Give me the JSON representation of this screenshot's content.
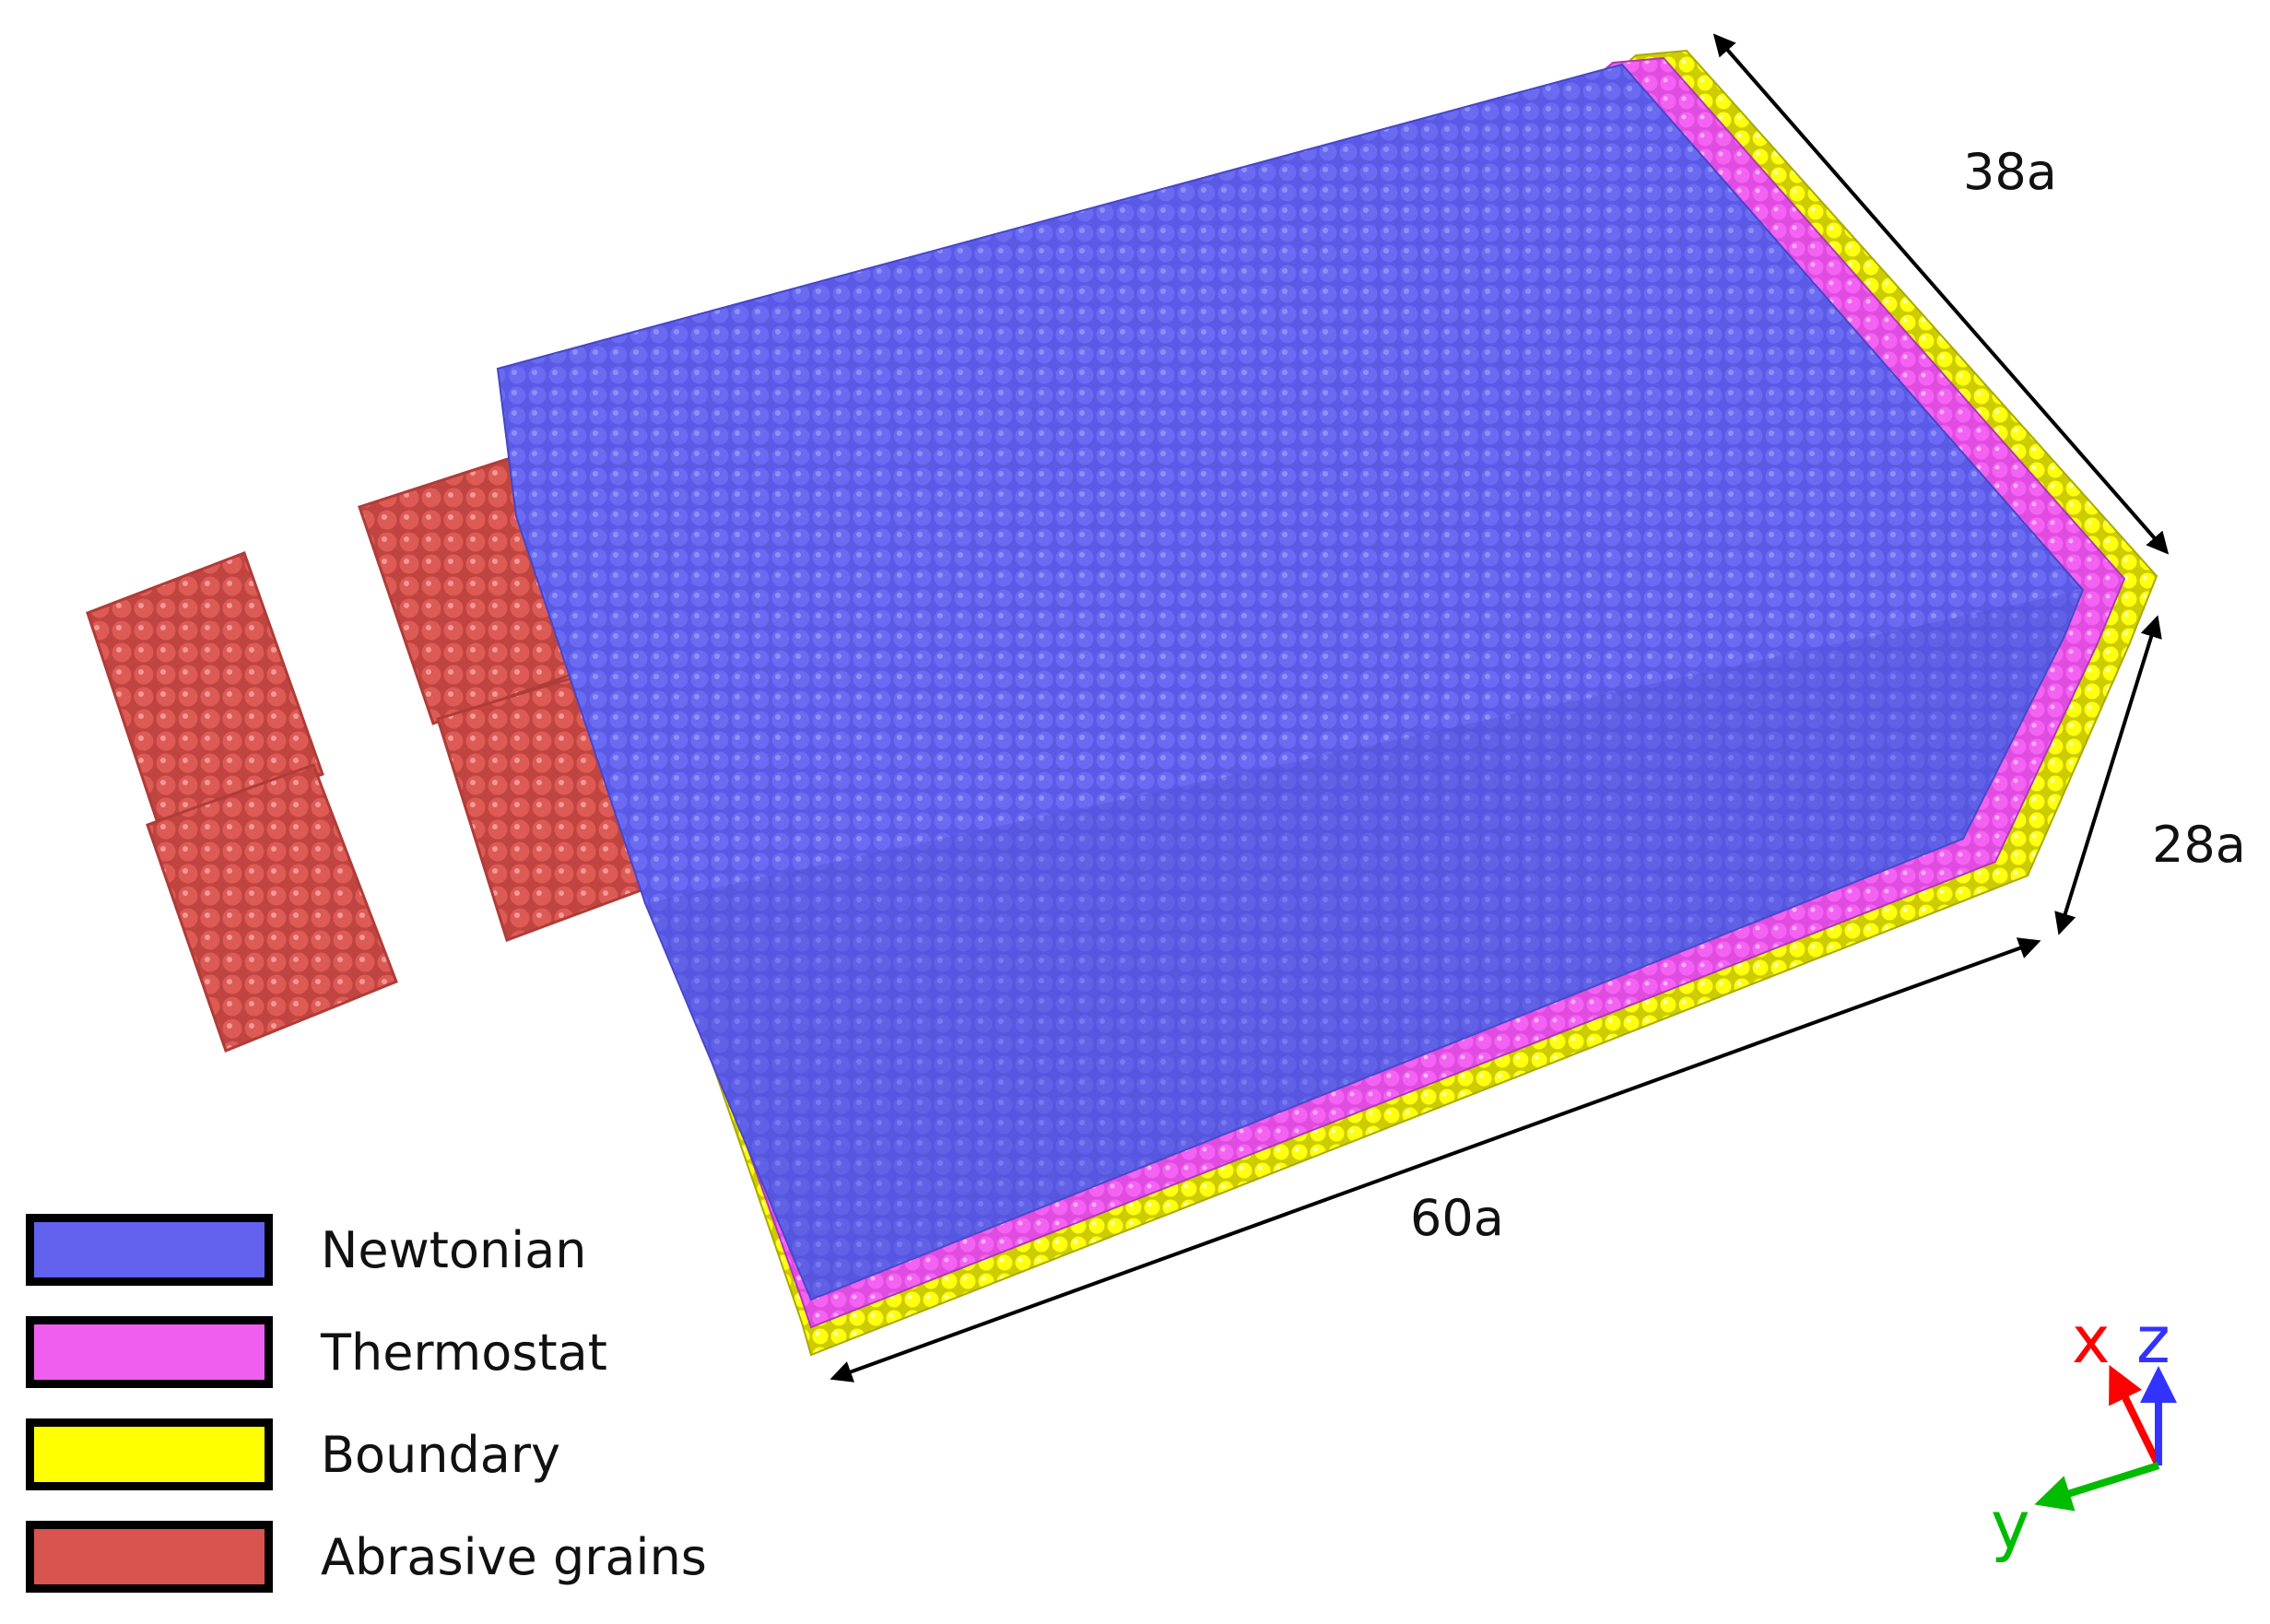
{
  "legend": [
    {
      "label": "Newtonian",
      "color": "#6262ee"
    },
    {
      "label": "Thermostat",
      "color": "#f05ef0"
    },
    {
      "label": "Boundary",
      "color": "#ffff00"
    },
    {
      "label": "Abrasive grains",
      "color": "#d9534f"
    }
  ],
  "dimensions": {
    "length": "60a",
    "width": "38a",
    "height": "28a"
  },
  "axes": {
    "x": {
      "label": "x",
      "color": "#ff0000"
    },
    "y": {
      "label": "y",
      "color": "#00bb00"
    },
    "z": {
      "label": "z",
      "color": "#3333ff"
    }
  }
}
